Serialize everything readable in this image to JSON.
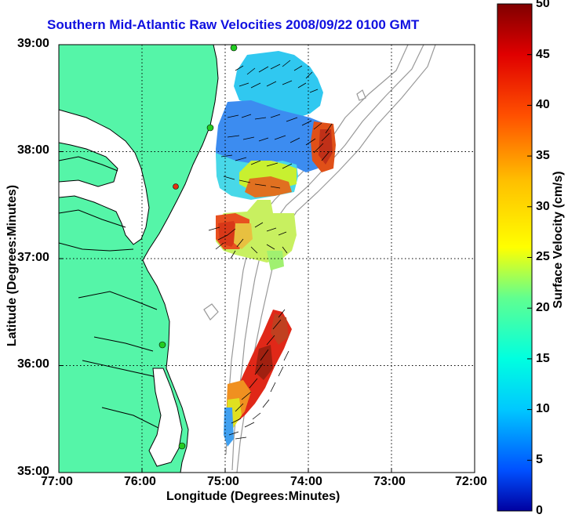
{
  "title": "Southern Mid-Atlantic Raw Velocities 2008/09/22 0100 GMT",
  "xlabel": "Longitude (Degrees:Minutes)",
  "ylabel": "Latitude (Degrees:Minutes)",
  "colorbar_label": "Surface Velocity (cm/s)",
  "x_ticks": [
    "77:00",
    "76:00",
    "75:00",
    "74:00",
    "73:00",
    "72:00"
  ],
  "y_ticks": [
    "39:00",
    "38:00",
    "37:00",
    "36:00",
    "35:00"
  ],
  "cb_ticks": [
    "50",
    "45",
    "40",
    "35",
    "30",
    "25",
    "20",
    "15",
    "10",
    "5",
    "0"
  ],
  "colors": {
    "land": "#55f5a8",
    "coast": "#000000",
    "bathymetry": "#999999",
    "title": "#1010e0",
    "station": "#22cc22",
    "station_alt": "#e03010"
  },
  "map": {
    "lon_range": [
      -77,
      -72
    ],
    "lat_range": [
      35,
      39
    ],
    "grid": "dotted",
    "colormap": "jet",
    "velocity_range_cms": [
      0,
      50
    ]
  }
}
